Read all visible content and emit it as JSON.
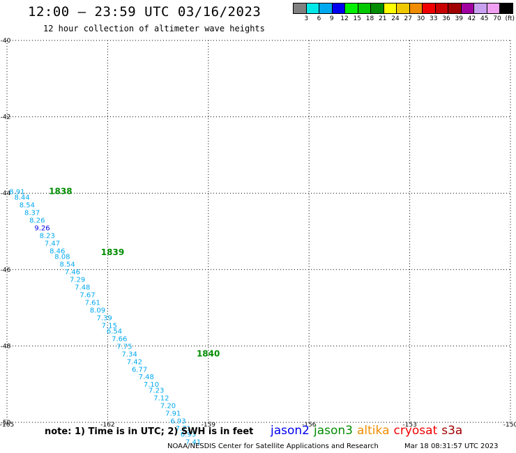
{
  "header": {
    "title": "12:00 – 23:59 UTC 03/16/2023",
    "subtitle": "12 hour collection of altimeter wave heights"
  },
  "legend": {
    "colors": [
      "#808080",
      "#00e8e8",
      "#00a8f0",
      "#0000f0",
      "#00f000",
      "#00c800",
      "#008c00",
      "#ffff00",
      "#f0c800",
      "#f08c00",
      "#f00000",
      "#c80000",
      "#a00000",
      "#a000a0",
      "#c8a0f0",
      "#f0a0f0",
      "#000000"
    ],
    "labels": [
      "3",
      "6",
      "9",
      "12",
      "15",
      "18",
      "21",
      "24",
      "27",
      "30",
      "33",
      "36",
      "39",
      "42",
      "45",
      "70",
      "(ft)"
    ]
  },
  "chart_data": {
    "type": "scatter",
    "title": "12:00 – 23:59 UTC 03/16/2023",
    "subtitle": "12 hour collection of altimeter wave heights",
    "x_ticks": [
      "-165",
      "-162",
      "-159",
      "-156",
      "-153",
      "-150"
    ],
    "y_ticks": [
      "-40",
      "-42",
      "-44",
      "-46",
      "-48",
      "-50"
    ],
    "xlim": [
      -165,
      -150
    ],
    "ylim": [
      -50,
      -40
    ],
    "grid": true,
    "time_labels": [
      {
        "text": "1838",
        "lon": -163.75,
        "lat": -43.95
      },
      {
        "text": "1839",
        "lon": -162.2,
        "lat": -45.55
      },
      {
        "text": "1840",
        "lon": -159.35,
        "lat": -48.2
      }
    ],
    "points": [
      {
        "lon": -164.7,
        "lat": -43.95,
        "swh": "8.91"
      },
      {
        "lon": -164.55,
        "lat": -44.1,
        "swh": "8.44"
      },
      {
        "lon": -164.4,
        "lat": -44.3,
        "swh": "8.54"
      },
      {
        "lon": -164.25,
        "lat": -44.5,
        "swh": "8.37"
      },
      {
        "lon": -164.1,
        "lat": -44.7,
        "swh": "8.26"
      },
      {
        "lon": -163.95,
        "lat": -44.9,
        "swh": "9.26"
      },
      {
        "lon": -163.8,
        "lat": -45.1,
        "swh": "8.23"
      },
      {
        "lon": -163.65,
        "lat": -45.3,
        "swh": "7.47"
      },
      {
        "lon": -163.5,
        "lat": -45.5,
        "swh": "8.46"
      },
      {
        "lon": -163.35,
        "lat": -45.65,
        "swh": "8.08"
      },
      {
        "lon": -163.2,
        "lat": -45.85,
        "swh": "8.54"
      },
      {
        "lon": -163.05,
        "lat": -46.05,
        "swh": "7.46"
      },
      {
        "lon": -162.9,
        "lat": -46.25,
        "swh": "7.29"
      },
      {
        "lon": -162.75,
        "lat": -46.45,
        "swh": "7.48"
      },
      {
        "lon": -162.6,
        "lat": -46.65,
        "swh": "7.67"
      },
      {
        "lon": -162.45,
        "lat": -46.85,
        "swh": "7.61"
      },
      {
        "lon": -162.3,
        "lat": -47.05,
        "swh": "8.09"
      },
      {
        "lon": -162.1,
        "lat": -47.25,
        "swh": "7.39"
      },
      {
        "lon": -161.95,
        "lat": -47.45,
        "swh": "7.15"
      },
      {
        "lon": -161.8,
        "lat": -47.6,
        "swh": "6.54"
      },
      {
        "lon": -161.65,
        "lat": -47.8,
        "swh": "7.66"
      },
      {
        "lon": -161.5,
        "lat": -48.0,
        "swh": "7.75"
      },
      {
        "lon": -161.35,
        "lat": -48.2,
        "swh": "7.34"
      },
      {
        "lon": -161.2,
        "lat": -48.4,
        "swh": "7.42"
      },
      {
        "lon": -161.05,
        "lat": -48.6,
        "swh": "6.77"
      },
      {
        "lon": -160.85,
        "lat": -48.8,
        "swh": "7.48"
      },
      {
        "lon": -160.7,
        "lat": -49.0,
        "swh": "7.10"
      },
      {
        "lon": -160.55,
        "lat": -49.15,
        "swh": "7.23"
      },
      {
        "lon": -160.4,
        "lat": -49.35,
        "swh": "7.12"
      },
      {
        "lon": -160.2,
        "lat": -49.55,
        "swh": "7.20"
      },
      {
        "lon": -160.05,
        "lat": -49.75,
        "swh": "7.91"
      },
      {
        "lon": -159.9,
        "lat": -49.95,
        "swh": "6.93"
      },
      {
        "lon": -159.75,
        "lat": -50.15,
        "swh": "7.71"
      },
      {
        "lon": -159.6,
        "lat": -50.3,
        "swh": "6.93"
      },
      {
        "lon": -159.45,
        "lat": -50.5,
        "swh": "7.41"
      }
    ]
  },
  "footer": {
    "note": "note:  1) Time is in UTC;  2) SWH is in feet",
    "satellites": [
      {
        "name": "jason2",
        "color": "#0000f0"
      },
      {
        "name": "jason3",
        "color": "#008c00"
      },
      {
        "name": "altika",
        "color": "#f08c00"
      },
      {
        "name": "cryosat",
        "color": "#f00000"
      },
      {
        "name": "s3a",
        "color": "#a00000"
      }
    ],
    "credit": "NOAA/NESDIS Center for Satellite Applications and Research",
    "timestamp": "Mar 18 08:31:57 UTC 2023"
  }
}
